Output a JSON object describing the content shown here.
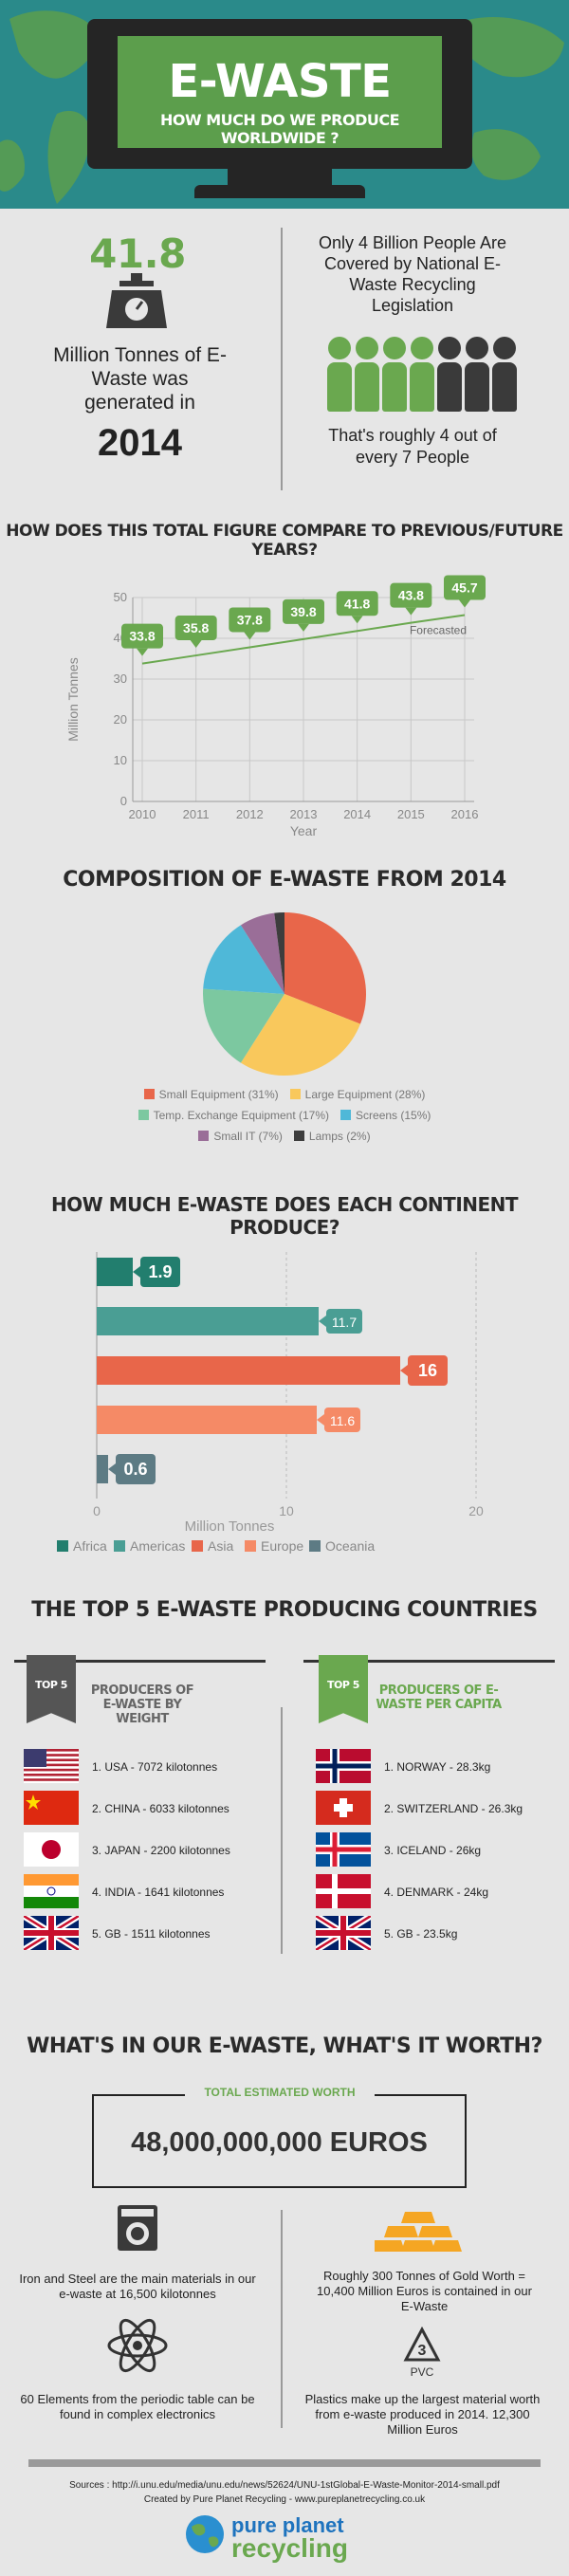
{
  "colors": {
    "green": "#6aa84f",
    "teal": "#227e6e",
    "bg": "#e6e6e6",
    "dark": "#333333"
  },
  "header": {
    "title": "E-WASTE",
    "subtitle": "HOW MUCH DO WE PRODUCE WORLDWIDE ?"
  },
  "stats": {
    "amount": "41.8",
    "amount_desc": "Million Tonnes of E-Waste was generated in",
    "year": "2014",
    "people_text": "Only 4 Billion People Are Covered by National E-Waste Recycling Legislation",
    "people_ratio": "That's roughly 4 out of every 7 People",
    "people_covered": 4,
    "people_total": 7
  },
  "line_section": {
    "title": "HOW DOES THIS TOTAL FIGURE COMPARE TO PREVIOUS/FUTURE YEARS?",
    "forecast_label": "Forecasted"
  },
  "pie_section": {
    "title": "COMPOSITION OF E-WASTE FROM 2014"
  },
  "bar_section": {
    "title": "HOW MUCH E-WASTE DOES EACH CONTINENT PRODUCE?"
  },
  "chart_data": [
    {
      "type": "line",
      "x": [
        "2010",
        "2011",
        "2012",
        "2013",
        "2014",
        "2015",
        "2016"
      ],
      "values": [
        33.8,
        35.8,
        37.8,
        39.8,
        41.8,
        43.8,
        45.7
      ],
      "labels": [
        "33.8",
        "35.8",
        "37.8",
        "39.8",
        "41.8",
        "43.8",
        "45.7"
      ],
      "xlabel": "Year",
      "ylabel": "Million Tonnes",
      "ylim": [
        0,
        50
      ],
      "yticks": [
        "0",
        "10",
        "20",
        "30",
        "40",
        "50"
      ],
      "grid": true,
      "color": "#6aa84f"
    },
    {
      "type": "pie",
      "slices": [
        {
          "label": "Small Equipment (31%)",
          "value": 31,
          "color": "#e8664a"
        },
        {
          "label": "Large Equipment (28%)",
          "value": 28,
          "color": "#f9c85c"
        },
        {
          "label": "Temp. Exchange Equipment (17%)",
          "value": 17,
          "color": "#7cc8a0"
        },
        {
          "label": "Screens (15%)",
          "value": 15,
          "color": "#4fb8d8"
        },
        {
          "label": "Small IT (7%)",
          "value": 7,
          "color": "#9a6e98"
        },
        {
          "label": "Lamps (2%)",
          "value": 2,
          "color": "#3d3d3d"
        }
      ],
      "legend": "bottom"
    },
    {
      "type": "bar",
      "orientation": "horizontal",
      "categories": [
        "Africa",
        "Americas",
        "Asia",
        "Europe",
        "Oceania"
      ],
      "values": [
        1.9,
        11.7,
        16,
        11.6,
        0.6
      ],
      "labels": [
        "1.9",
        "11.7",
        "16",
        "11.6",
        "0.6"
      ],
      "colors": [
        "#227e6e",
        "#4a9e94",
        "#e8664a",
        "#f58a66",
        "#5d7b84"
      ],
      "xlabel": "Million Tonnes",
      "xlim": [
        0,
        20
      ],
      "xticks": [
        "0",
        "10",
        "20"
      ],
      "legend": "bottom",
      "grid": true
    }
  ],
  "top5": {
    "title": "THE TOP 5 E-WASTE PRODUCING COUNTRIES",
    "badge": "TOP 5",
    "left_heading": "PRODUCERS OF E-WASTE BY WEIGHT",
    "right_heading": "PRODUCERS OF E-WASTE PER CAPITA",
    "left": [
      {
        "text": "1. USA - 7072 kilotonnes",
        "flag": "usa-flag"
      },
      {
        "text": "2. CHINA - 6033 kilotonnes",
        "flag": "china-flag"
      },
      {
        "text": "3. JAPAN - 2200 kilotonnes",
        "flag": "japan-flag"
      },
      {
        "text": "4. INDIA - 1641 kilotonnes",
        "flag": "india-flag"
      },
      {
        "text": "5. GB - 1511 kilotonnes",
        "flag": "uk-flag"
      }
    ],
    "right": [
      {
        "text": "1. NORWAY - 28.3kg",
        "flag": "norway-flag"
      },
      {
        "text": "2. SWITZERLAND - 26.3kg",
        "flag": "switzerland-flag"
      },
      {
        "text": "3. ICELAND - 26kg",
        "flag": "iceland-flag"
      },
      {
        "text": "4. DENMARK - 24kg",
        "flag": "denmark-flag"
      },
      {
        "text": "5. GB - 23.5kg",
        "flag": "uk-flag"
      }
    ]
  },
  "worth": {
    "title": "WHAT'S IN OUR E-WASTE, WHAT'S IT WORTH?",
    "box_label": "TOTAL ESTIMATED WORTH",
    "amount": "48,000,000,000 EUROS",
    "facts": [
      {
        "text": "Iron and Steel are the main materials in our e-waste at 16,500 kilotonnes",
        "icon": "washing-machine-icon"
      },
      {
        "text": "Roughly 300 Tonnes of Gold Worth = 10,400 Million Euros is contained in our E-Waste",
        "icon": "gold-bars-icon"
      },
      {
        "text": "60 Elements from the periodic table can be found in complex electronics",
        "icon": "atom-icon"
      },
      {
        "text": "Plastics make up the largest material worth from e-waste produced in 2014. 12,300 Million Euros",
        "icon": "recycle-pvc-icon"
      }
    ],
    "pvc_number": "3",
    "pvc_label": "PVC"
  },
  "footer": {
    "sources": "Sources : http://i.unu.edu/media/unu.edu/news/52624/UNU-1stGlobal-E-Waste-Monitor-2014-small.pdf",
    "credit": "Created by Pure Planet Recycling - www.pureplanetrecycling.co.uk",
    "logo_top": "pure planet",
    "logo_bottom": "recycling"
  }
}
